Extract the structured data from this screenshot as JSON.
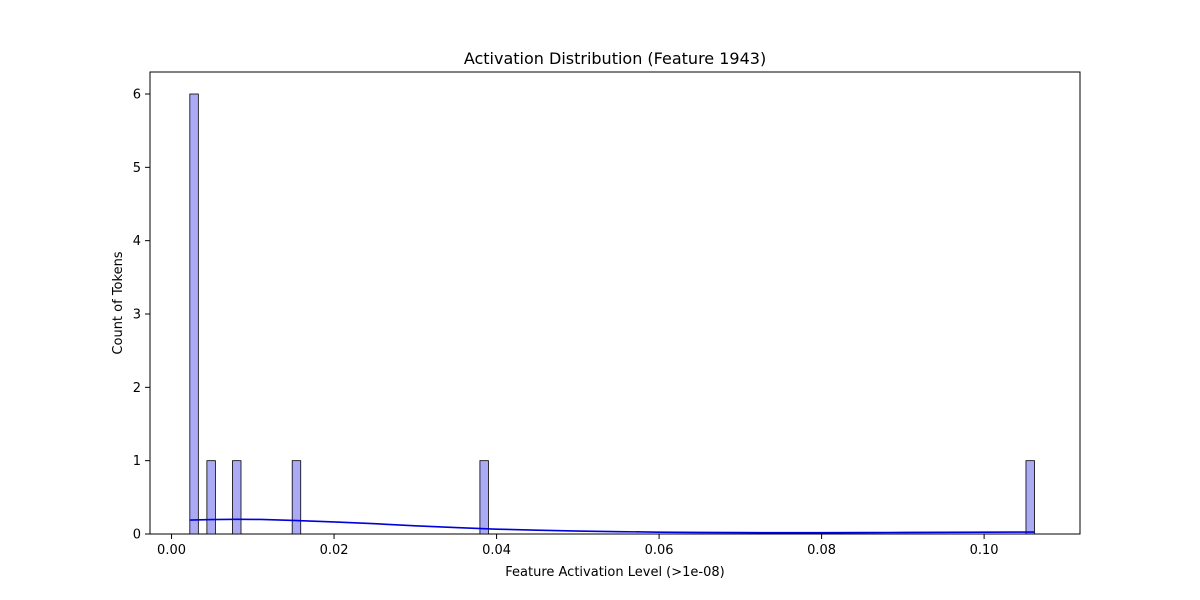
{
  "chart_data": {
    "type": "bar",
    "title": "Activation Distribution (Feature 1943)",
    "xlabel": "Feature Activation Level (>1e-08)",
    "ylabel": "Count of Tokens",
    "xlim": [
      -0.00265,
      0.1118
    ],
    "ylim": [
      0,
      6.3
    ],
    "x_ticks": [
      0.0,
      0.02,
      0.04,
      0.06,
      0.08,
      0.1
    ],
    "x_tick_labels": [
      "0.00",
      "0.02",
      "0.04",
      "0.06",
      "0.08",
      "0.10"
    ],
    "y_ticks": [
      0,
      1,
      2,
      3,
      4,
      5,
      6
    ],
    "y_tick_labels": [
      "0",
      "1",
      "2",
      "3",
      "4",
      "5",
      "6"
    ],
    "grid": false,
    "bars": [
      {
        "x_start": 0.00225,
        "x_end": 0.0033,
        "count": 6
      },
      {
        "x_start": 0.00435,
        "x_end": 0.0054,
        "count": 1
      },
      {
        "x_start": 0.0075,
        "x_end": 0.00855,
        "count": 1
      },
      {
        "x_start": 0.01485,
        "x_end": 0.0159,
        "count": 1
      },
      {
        "x_start": 0.03795,
        "x_end": 0.039,
        "count": 1
      },
      {
        "x_start": 0.10515,
        "x_end": 0.1062,
        "count": 1
      }
    ],
    "kde_line": {
      "x": [
        0.0022,
        0.005,
        0.008,
        0.011,
        0.015,
        0.02,
        0.025,
        0.03,
        0.035,
        0.04,
        0.045,
        0.05,
        0.055,
        0.06,
        0.065,
        0.07,
        0.075,
        0.08,
        0.085,
        0.09,
        0.095,
        0.1,
        0.1062
      ],
      "y": [
        0.19,
        0.197,
        0.2,
        0.198,
        0.185,
        0.165,
        0.14,
        0.112,
        0.088,
        0.066,
        0.052,
        0.04,
        0.032,
        0.025,
        0.021,
        0.019,
        0.018,
        0.018,
        0.019,
        0.021,
        0.023,
        0.025,
        0.027
      ]
    },
    "colors": {
      "bar_fill": "#aaaaf5",
      "bar_edge": "#000000",
      "kde_line": "#0000dd",
      "axes": "#000000"
    }
  }
}
